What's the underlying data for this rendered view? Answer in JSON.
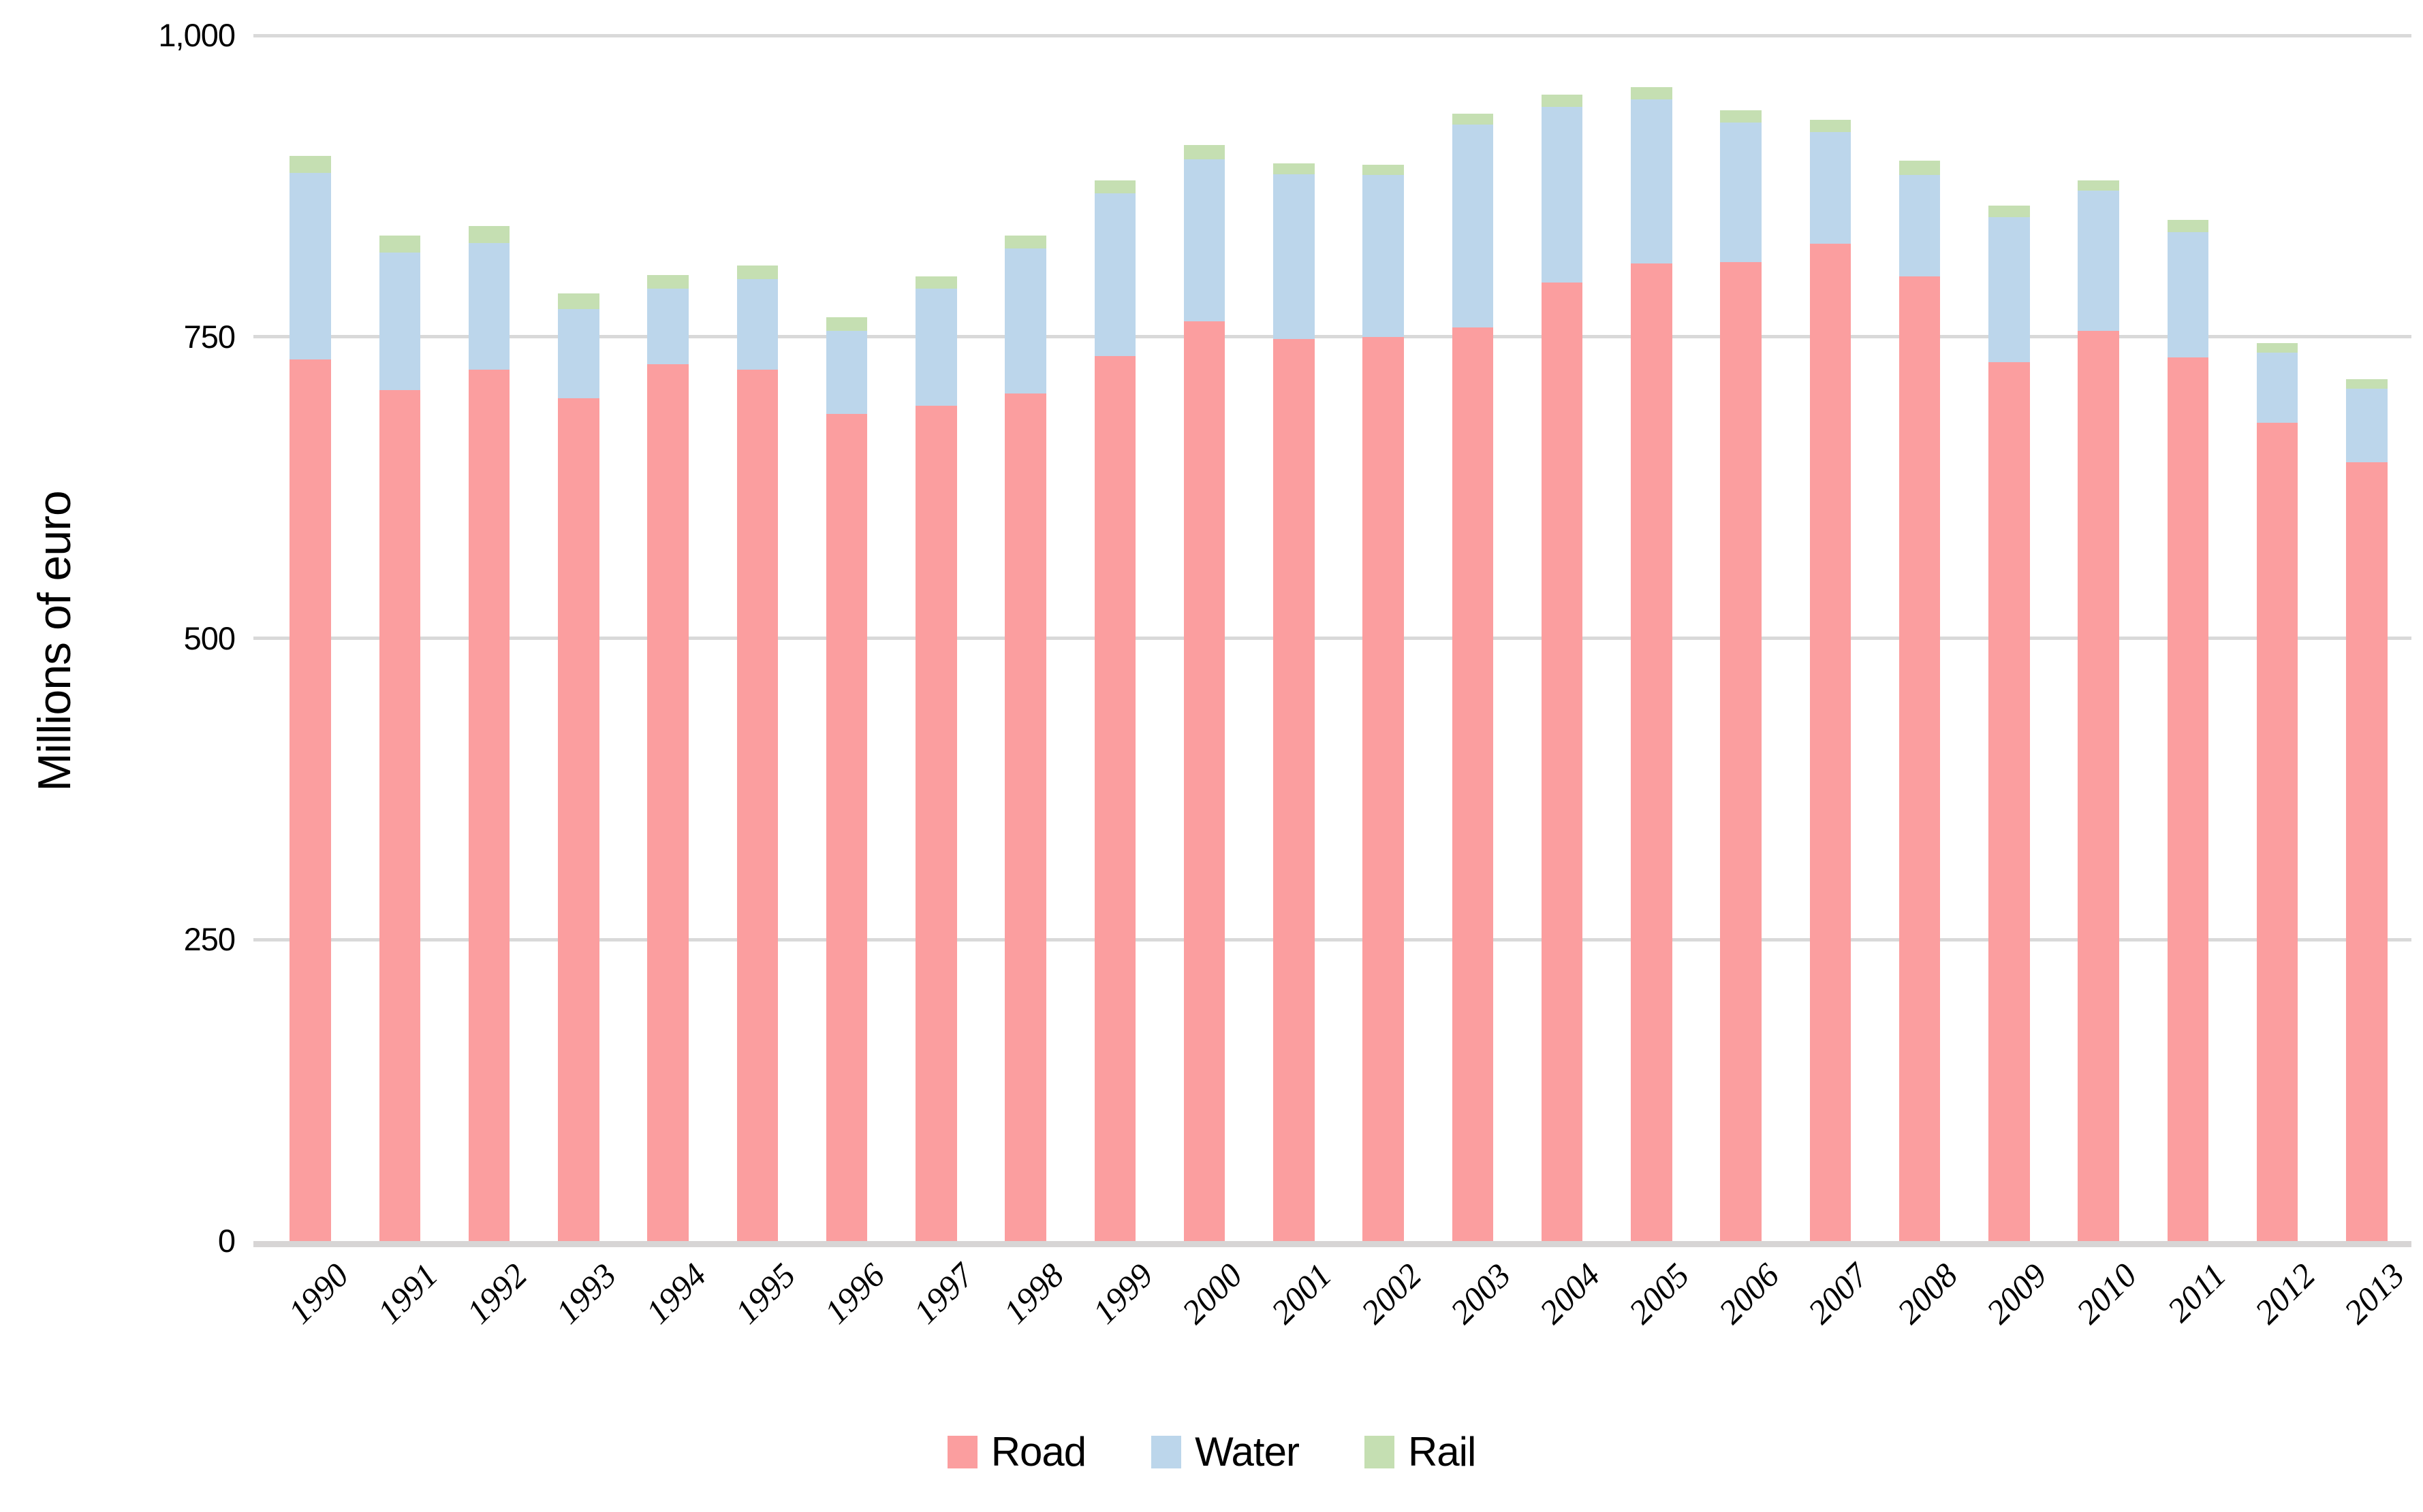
{
  "chart_data": {
    "type": "bar",
    "stacked": true,
    "title": "",
    "xlabel": "",
    "ylabel": "Millions of euro",
    "ylim": [
      0,
      1000
    ],
    "grid": true,
    "legend_position": "bottom",
    "categories": [
      "1990",
      "1991",
      "1992",
      "1993",
      "1994",
      "1995",
      "1996",
      "1997",
      "1998",
      "1999",
      "2000",
      "2001",
      "2002",
      "2003",
      "2004",
      "2005",
      "2006",
      "2007",
      "2008",
      "2009",
      "2010",
      "2011",
      "2012",
      "2013"
    ],
    "series": [
      {
        "name": "Road",
        "color": "#fb9e9f",
        "values": [
          731,
          706,
          723,
          699,
          727,
          723,
          686,
          693,
          703,
          734,
          763,
          748,
          750,
          758,
          795,
          811,
          812,
          827,
          800,
          729,
          755,
          733,
          679,
          646
        ]
      },
      {
        "name": "Water",
        "color": "#bcd6eb",
        "values": [
          155,
          114,
          105,
          74,
          63,
          75,
          69,
          97,
          120,
          135,
          134,
          137,
          134,
          168,
          146,
          136,
          116,
          93,
          84,
          120,
          116,
          104,
          58,
          61
        ]
      },
      {
        "name": "Rail",
        "color": "#c5dfb2",
        "values": [
          14,
          14,
          14,
          13,
          11,
          11,
          11,
          10,
          11,
          11,
          12,
          9,
          9,
          9,
          10,
          10,
          10,
          10,
          12,
          10,
          9,
          10,
          8,
          8
        ]
      }
    ],
    "yticks": [
      {
        "value": 0,
        "label": "0"
      },
      {
        "value": 250,
        "label": "250"
      },
      {
        "value": 500,
        "label": "500"
      },
      {
        "value": 750,
        "label": "750"
      },
      {
        "value": 1000,
        "label": "1,000"
      }
    ]
  },
  "colors": {
    "background": "#ffffff",
    "gridline": "#d9d9d9",
    "axis_line": "#d7d5d5",
    "text": "#000000"
  }
}
